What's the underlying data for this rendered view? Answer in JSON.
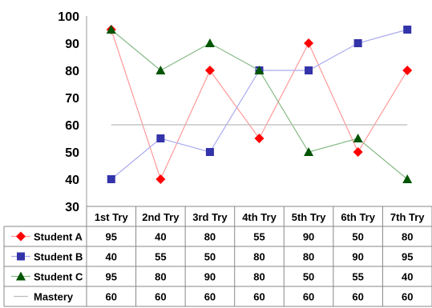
{
  "chart_data": {
    "type": "line",
    "categories": [
      "1st Try",
      "2nd Try",
      "3rd Try",
      "4th Try",
      "5th Try",
      "6th Try",
      "7th Try"
    ],
    "ylim": [
      30,
      100
    ],
    "yticks": [
      30,
      40,
      50,
      60,
      70,
      80,
      90,
      100
    ],
    "grid": false,
    "legend": "data table below the plot, with legend keys in the first column",
    "series": [
      {
        "name": "Student A",
        "values": [
          95,
          40,
          80,
          55,
          90,
          50,
          80
        ],
        "color": "#ff0000",
        "line_color": "#ff9999",
        "marker": "diamond"
      },
      {
        "name": "Student B",
        "values": [
          40,
          55,
          50,
          80,
          80,
          90,
          95
        ],
        "color": "#3333aa",
        "line_color": "#aaaaee",
        "marker": "square"
      },
      {
        "name": "Student C",
        "values": [
          95,
          80,
          90,
          80,
          50,
          55,
          40
        ],
        "color": "#005500",
        "line_color": "#88bb88",
        "marker": "triangle"
      },
      {
        "name": "Mastery",
        "values": [
          60,
          60,
          60,
          60,
          60,
          60,
          60
        ],
        "color": "#bbbbbb",
        "line_color": "#bbbbbb",
        "marker": "none"
      }
    ]
  }
}
